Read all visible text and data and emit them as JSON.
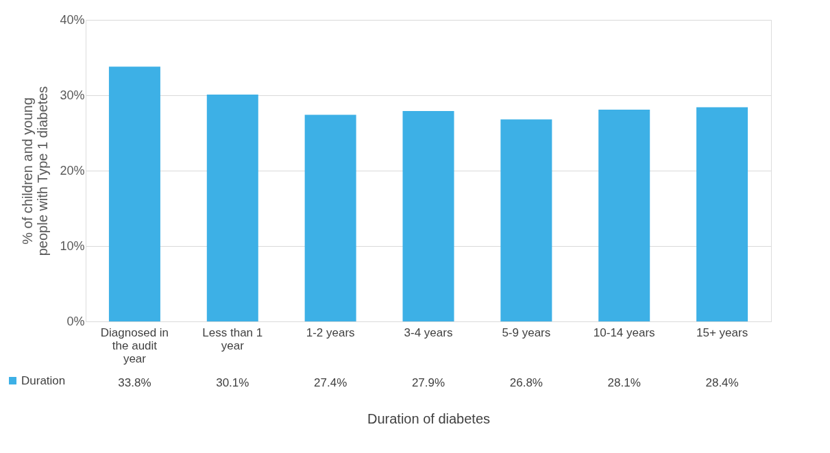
{
  "chart_data": {
    "type": "bar",
    "xlabel": "Duration of diabetes",
    "ylabel": "% of children and young people with Type 1 diabetes",
    "categories": [
      "Diagnosed in the audit year",
      "Less than 1 year",
      "1-2 years",
      "3-4 years",
      "5-9 years",
      "10-14 years",
      "15+ years"
    ],
    "series": [
      {
        "name": "Duration",
        "color": "#3db0e6",
        "values": [
          33.8,
          30.1,
          27.4,
          27.9,
          26.8,
          28.1,
          28.4
        ]
      }
    ],
    "value_labels": [
      "33.8%",
      "30.1%",
      "27.4%",
      "27.9%",
      "26.8%",
      "28.1%",
      "28.4%"
    ],
    "ylim": [
      0,
      40
    ],
    "yticks": [
      {
        "value": 0,
        "label": "0%"
      },
      {
        "value": 10,
        "label": "10%"
      },
      {
        "value": 20,
        "label": "20%"
      },
      {
        "value": 30,
        "label": "30%"
      },
      {
        "value": 40,
        "label": "40%"
      }
    ],
    "grid": "y",
    "legend": "bottom left"
  }
}
